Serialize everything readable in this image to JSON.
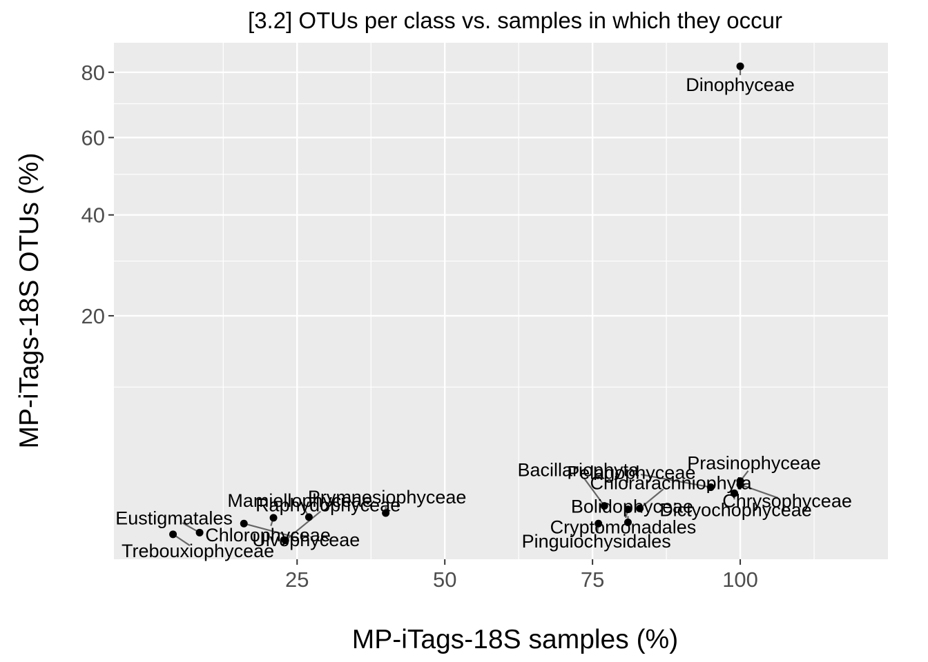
{
  "chart_data": {
    "type": "scatter",
    "title": "[3.2] OTUs per class vs. samples in which they occur",
    "xlabel": "MP-iTags-18S samples (%)",
    "ylabel": "MP-iTags-18S OTUs (%)",
    "x_scale": "linear",
    "y_scale": "sqrt",
    "xlim": [
      -6,
      125
    ],
    "ylim": [
      0,
      90
    ],
    "x_ticks": [
      {
        "value": 25,
        "label": "25"
      },
      {
        "value": 50,
        "label": "50"
      },
      {
        "value": 75,
        "label": "75"
      },
      {
        "value": 100,
        "label": "100"
      }
    ],
    "x_minor_ticks": [
      12.5,
      37.5,
      62.5,
      87.5,
      112.5
    ],
    "y_ticks": [
      {
        "value": 20,
        "label": "20"
      },
      {
        "value": 40,
        "label": "40"
      },
      {
        "value": 60,
        "label": "60"
      },
      {
        "value": 80,
        "label": "80"
      }
    ],
    "y_minor_ticks": [
      10,
      30,
      50,
      70
    ],
    "grid": true,
    "point_color": "#000000",
    "panel_color": "#ebebeb",
    "points": [
      {
        "name": "Dinophyceae",
        "x": 100,
        "y": 82.0,
        "label_dx": 0,
        "label_dy": 27
      },
      {
        "name": "Prasinophyceae",
        "x": 100,
        "y": 2.06,
        "label_dx": 20,
        "label_dy": -26
      },
      {
        "name": "Chrysophyceae",
        "x": 100,
        "y": 1.88,
        "label_dx": 68,
        "label_dy": 24
      },
      {
        "name": "Pelagophyceae",
        "x": 95,
        "y": 1.75,
        "label_dx": -115,
        "label_dy": -21
      },
      {
        "name": "Dictyochophyceae",
        "x": 99,
        "y": 1.47,
        "label_dx": 2,
        "label_dy": 24
      },
      {
        "name": "Bacillariophyta",
        "x": 77,
        "y": 0.96,
        "label_dx": -38,
        "label_dy": -52
      },
      {
        "name": "Chlorarachniophyta",
        "x": 83,
        "y": 0.87,
        "label_dx": 45,
        "label_dy": -37
      },
      {
        "name": "Cryptomonadales",
        "x": 81,
        "y": 0.84,
        "label_dx": -7,
        "label_dy": 26
      },
      {
        "name": "Prymnesiophyceae",
        "x": 40,
        "y": 0.72,
        "label_dx": 2,
        "label_dy": -23
      },
      {
        "name": "Mamiellophyceae",
        "x": 27,
        "y": 0.6,
        "label_dx": -13,
        "label_dy": -24
      },
      {
        "name": "Chlorophyceae",
        "x": 21,
        "y": 0.58,
        "label_dx": -8,
        "label_dy": 25
      },
      {
        "name": "Ulvophyceae",
        "x": 16,
        "y": 0.43,
        "label_dx": 90,
        "label_dy": 24
      },
      {
        "name": "Bolidophyceae",
        "x": 81,
        "y": 0.46,
        "label_dx": 6,
        "label_dy": -23
      },
      {
        "name": "Pinguiochysidales",
        "x": 76,
        "y": 0.43,
        "label_dx": -3,
        "label_dy": 26
      },
      {
        "name": "Eustigmatales",
        "x": 8.5,
        "y": 0.24,
        "label_dx": -37,
        "label_dy": -21
      },
      {
        "name": "Trebouxiophyceae",
        "x": 4,
        "y": 0.21,
        "label_dx": 36,
        "label_dy": 24
      },
      {
        "name": "Raphydophyceae",
        "x": 23,
        "y": 0.12,
        "label_dx": 62,
        "label_dy": -51
      }
    ]
  }
}
